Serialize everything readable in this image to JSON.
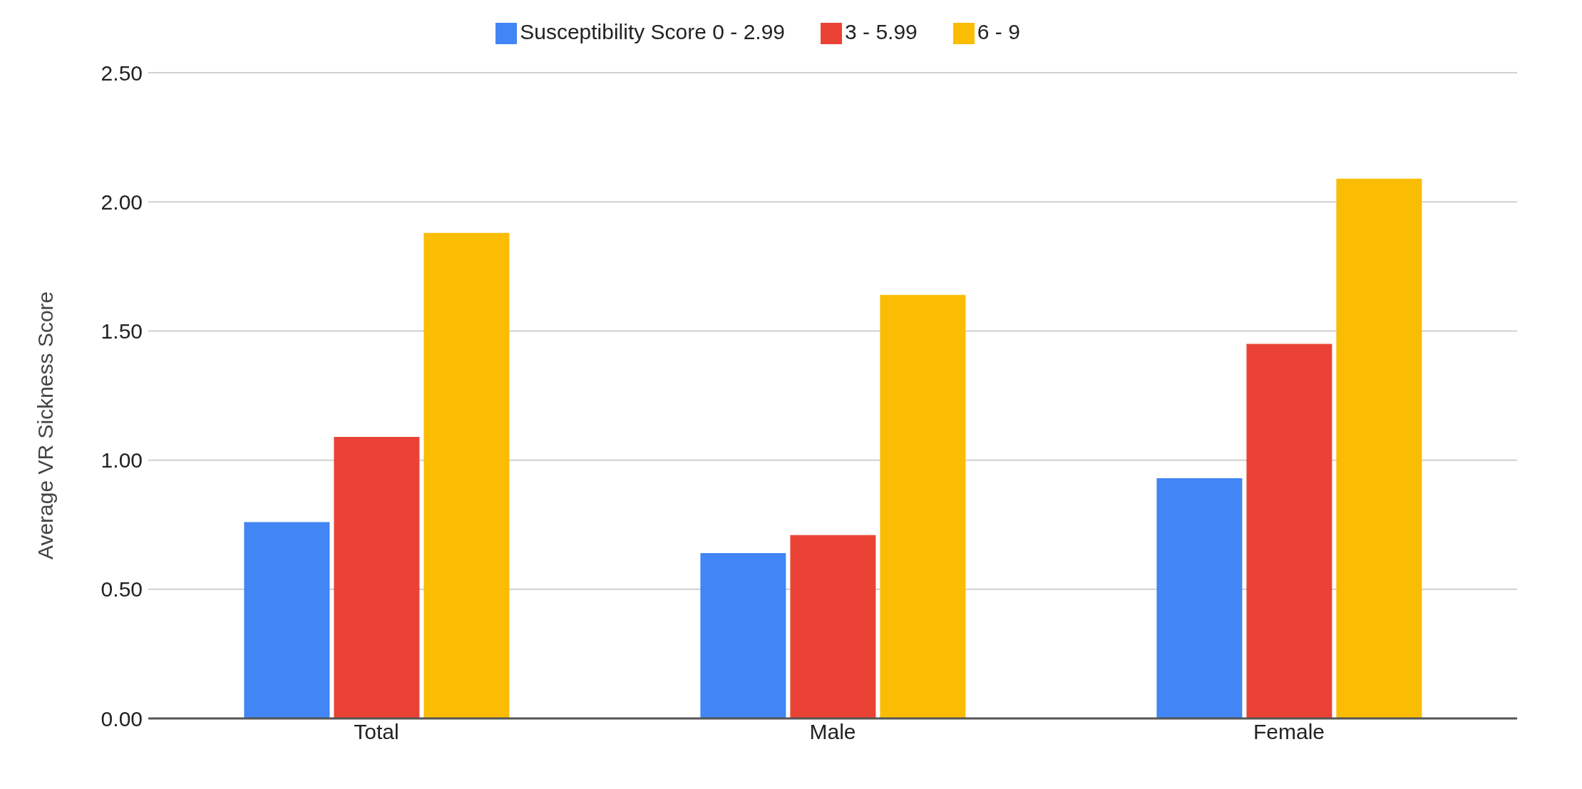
{
  "chart_data": {
    "type": "bar",
    "ylabel": "Average VR Sickness Score",
    "categories": [
      "Total",
      "Male",
      "Female"
    ],
    "series": [
      {
        "name": "Susceptibility Score 0 - 2.99",
        "color": "#4285f4",
        "values": [
          0.76,
          0.64,
          0.93
        ]
      },
      {
        "name": "3 - 5.99",
        "color": "#ea4335",
        "values": [
          1.09,
          0.71,
          1.45
        ]
      },
      {
        "name": "6 - 9",
        "color": "#fbbc04",
        "values": [
          1.88,
          1.64,
          2.09
        ]
      }
    ],
    "ylim": [
      0,
      2.5
    ],
    "yticks": [
      {
        "value": 0,
        "label": "0.00"
      },
      {
        "value": 0.5,
        "label": "0.50"
      },
      {
        "value": 1,
        "label": "1.00"
      },
      {
        "value": 1.5,
        "label": "1.50"
      },
      {
        "value": 2,
        "label": "2.00"
      },
      {
        "value": 2.5,
        "label": "2.50"
      }
    ],
    "grid": "y",
    "legend": "top"
  }
}
